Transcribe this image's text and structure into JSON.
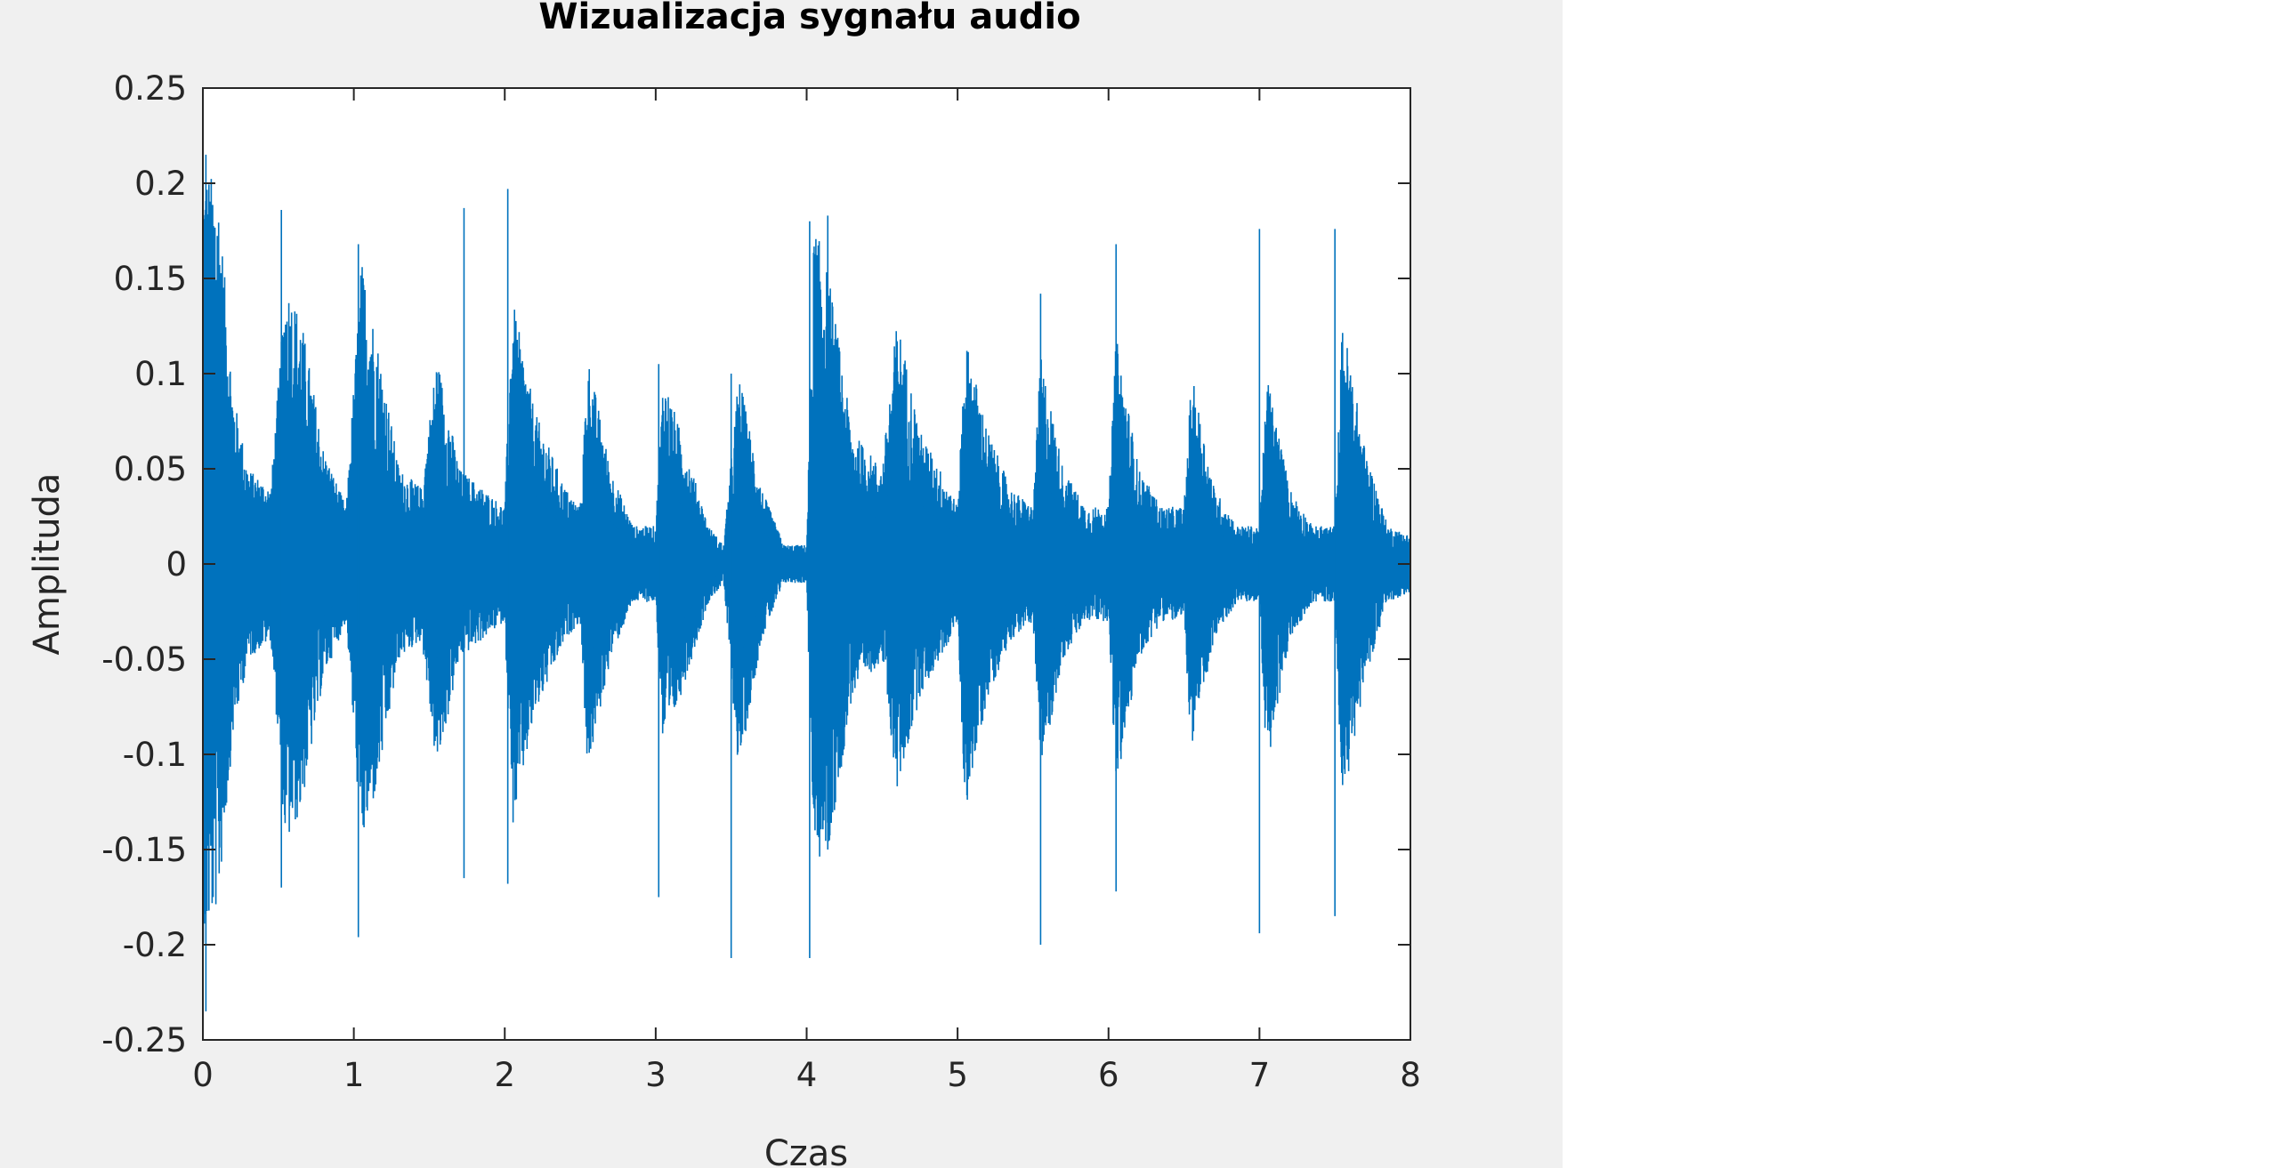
{
  "chart_data": {
    "type": "line",
    "title": "Wizualizacja sygnału audio",
    "xlabel": "Czas",
    "ylabel": "Amplituda",
    "xlim": [
      0,
      8
    ],
    "ylim": [
      -0.25,
      0.25
    ],
    "xticks": [
      0,
      1,
      2,
      3,
      4,
      5,
      6,
      7,
      8
    ],
    "xtick_labels": [
      "0",
      "1",
      "2",
      "3",
      "4",
      "5",
      "6",
      "7",
      "8"
    ],
    "yticks": [
      0.25,
      0.2,
      0.15,
      0.1,
      0.05,
      0,
      -0.05,
      -0.1,
      -0.15,
      -0.2,
      -0.25
    ],
    "ytick_labels": [
      "0.25",
      "0.2",
      "0.15",
      "0.1",
      "0.05",
      "0",
      "-0.05",
      "-0.1",
      "-0.15",
      "-0.2",
      "-0.25"
    ],
    "grid": false,
    "series": [
      {
        "color": "#0072bd",
        "envelope": {
          "t": [
            0.0,
            0.1,
            0.2,
            0.3,
            0.45,
            0.55,
            0.65,
            0.8,
            0.95,
            1.05,
            1.15,
            1.3,
            1.45,
            1.55,
            1.7,
            1.85,
            2.0,
            2.05,
            2.2,
            2.4,
            2.5,
            2.55,
            2.7,
            2.85,
            3.0,
            3.05,
            3.2,
            3.35,
            3.45,
            3.55,
            3.7,
            3.85,
            4.0,
            4.05,
            4.15,
            4.3,
            4.5,
            4.6,
            4.75,
            4.95,
            5.0,
            5.05,
            5.2,
            5.35,
            5.5,
            5.55,
            5.7,
            5.85,
            6.0,
            6.05,
            6.2,
            6.35,
            6.5,
            6.55,
            6.7,
            6.85,
            7.0,
            7.05,
            7.2,
            7.35,
            7.5,
            7.55,
            7.7,
            7.85,
            8.0
          ],
          "upper": [
            0.21,
            0.2,
            0.09,
            0.05,
            0.04,
            0.15,
            0.13,
            0.06,
            0.03,
            0.16,
            0.12,
            0.05,
            0.04,
            0.11,
            0.05,
            0.04,
            0.03,
            0.14,
            0.08,
            0.04,
            0.03,
            0.11,
            0.05,
            0.02,
            0.02,
            0.1,
            0.06,
            0.02,
            0.01,
            0.1,
            0.04,
            0.01,
            0.01,
            0.18,
            0.15,
            0.07,
            0.05,
            0.13,
            0.07,
            0.04,
            0.03,
            0.12,
            0.07,
            0.04,
            0.03,
            0.11,
            0.05,
            0.03,
            0.03,
            0.12,
            0.05,
            0.03,
            0.03,
            0.1,
            0.04,
            0.02,
            0.02,
            0.1,
            0.04,
            0.02,
            0.02,
            0.13,
            0.06,
            0.02,
            0.015
          ],
          "lower": [
            -0.2,
            -0.18,
            -0.09,
            -0.05,
            -0.04,
            -0.15,
            -0.13,
            -0.06,
            -0.03,
            -0.15,
            -0.12,
            -0.05,
            -0.04,
            -0.11,
            -0.05,
            -0.04,
            -0.03,
            -0.14,
            -0.08,
            -0.04,
            -0.03,
            -0.11,
            -0.05,
            -0.02,
            -0.02,
            -0.1,
            -0.06,
            -0.02,
            -0.01,
            -0.11,
            -0.04,
            -0.01,
            -0.01,
            -0.16,
            -0.15,
            -0.07,
            -0.05,
            -0.12,
            -0.07,
            -0.04,
            -0.03,
            -0.13,
            -0.07,
            -0.04,
            -0.03,
            -0.11,
            -0.05,
            -0.03,
            -0.03,
            -0.12,
            -0.05,
            -0.03,
            -0.03,
            -0.1,
            -0.04,
            -0.02,
            -0.02,
            -0.11,
            -0.04,
            -0.02,
            -0.02,
            -0.13,
            -0.06,
            -0.02,
            -0.015
          ]
        },
        "peaks": [
          {
            "t": 0.02,
            "max": 0.215,
            "min": -0.235
          },
          {
            "t": 0.52,
            "max": 0.186,
            "min": -0.17
          },
          {
            "t": 1.03,
            "max": 0.168,
            "min": -0.196
          },
          {
            "t": 1.73,
            "max": 0.187,
            "min": -0.165
          },
          {
            "t": 2.02,
            "max": 0.197,
            "min": -0.168
          },
          {
            "t": 3.02,
            "max": 0.105,
            "min": -0.175
          },
          {
            "t": 3.5,
            "max": 0.1,
            "min": -0.207
          },
          {
            "t": 4.02,
            "max": 0.18,
            "min": -0.207
          },
          {
            "t": 4.14,
            "max": 0.183,
            "min": -0.15
          },
          {
            "t": 5.55,
            "max": 0.142,
            "min": -0.2
          },
          {
            "t": 6.05,
            "max": 0.168,
            "min": -0.172
          },
          {
            "t": 7.0,
            "max": 0.176,
            "min": -0.194
          },
          {
            "t": 7.5,
            "max": 0.176,
            "min": -0.185
          }
        ]
      }
    ]
  }
}
